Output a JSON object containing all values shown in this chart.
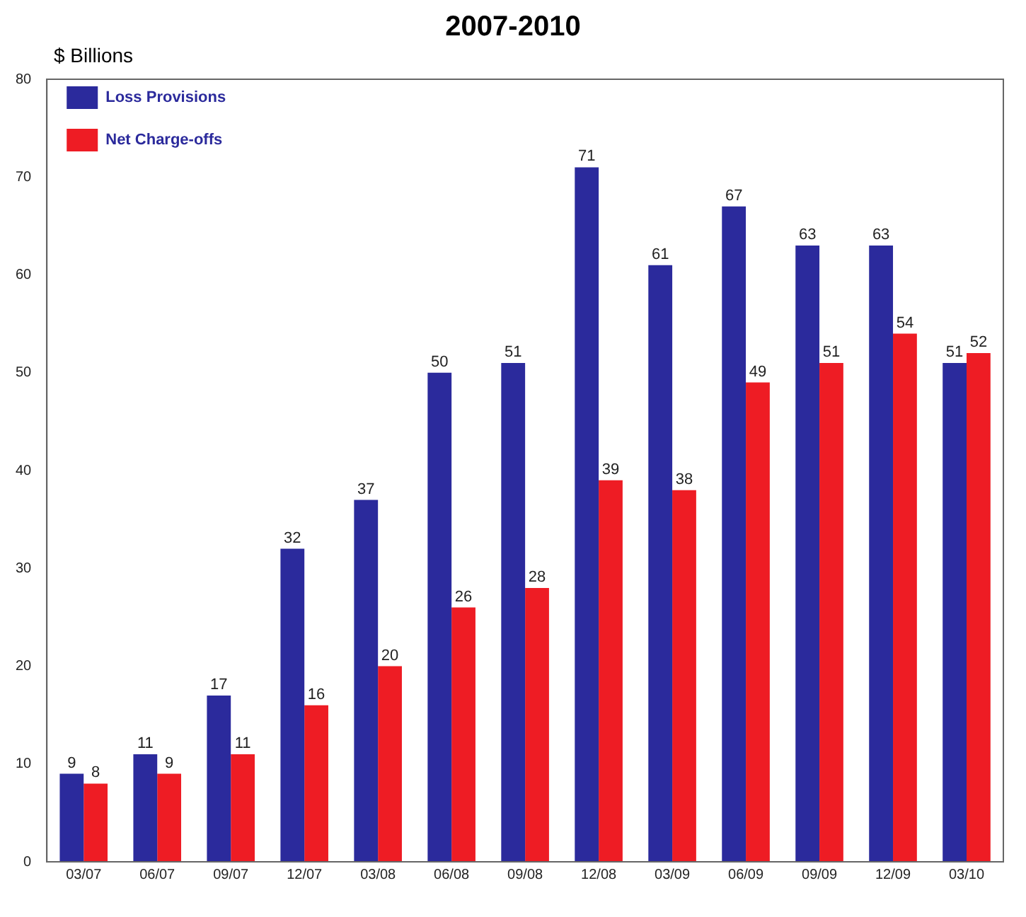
{
  "chart_data": {
    "type": "bar",
    "title": "2007-2010",
    "ylabel": "$ Billions",
    "categories": [
      "03/07",
      "06/07",
      "09/07",
      "12/07",
      "03/08",
      "06/08",
      "09/08",
      "12/08",
      "03/09",
      "06/09",
      "09/09",
      "12/09",
      "03/10"
    ],
    "series": [
      {
        "name": "Loss Provisions",
        "color": "#2b2a9c",
        "values": [
          9,
          11,
          17,
          32,
          37,
          50,
          51,
          71,
          61,
          67,
          63,
          63,
          51
        ]
      },
      {
        "name": "Net Charge-offs",
        "color": "#ee1c24",
        "values": [
          8,
          9,
          11,
          16,
          20,
          26,
          28,
          39,
          38,
          49,
          51,
          54,
          52
        ]
      }
    ],
    "ylim": [
      0,
      80
    ],
    "yticks": [
      0,
      10,
      20,
      30,
      40,
      50,
      60,
      70,
      80
    ],
    "grid": false,
    "legend": "top left",
    "data_labels": true
  }
}
